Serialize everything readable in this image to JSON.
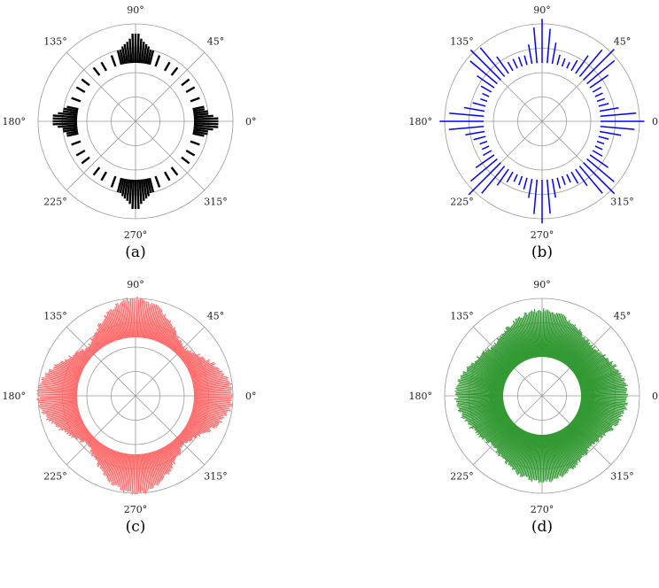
{
  "figure": {
    "captions": [
      "(a)",
      "(b)",
      "(c)",
      "(d)"
    ]
  },
  "chart_data": [
    {
      "type": "polar-bar",
      "caption": "(a)",
      "color": "#000000",
      "angle_ticks": [
        "0°",
        "45°",
        "90°",
        "135°",
        "180°",
        "225°",
        "270°",
        "315°"
      ],
      "inner_radius": 0.6,
      "outer_radius": 1.0,
      "bin_step_deg": 2,
      "bins": [
        {
          "angle": 0,
          "r": 0.85
        },
        {
          "angle": 2,
          "r": 0.85
        },
        {
          "angle": 4,
          "r": 0.8
        },
        {
          "angle": 6,
          "r": 0.75
        },
        {
          "angle": 8,
          "r": 0.75
        },
        {
          "angle": 10,
          "r": 0.72
        },
        {
          "angle": 12,
          "r": 0.72
        },
        {
          "angle": 20,
          "r": 0.7
        },
        {
          "angle": 30,
          "r": 0.7
        },
        {
          "angle": 38,
          "r": 0.7
        },
        {
          "angle": 52,
          "r": 0.7
        },
        {
          "angle": 60,
          "r": 0.7
        },
        {
          "angle": 70,
          "r": 0.72
        },
        {
          "angle": 76,
          "r": 0.75
        },
        {
          "angle": 78,
          "r": 0.75
        },
        {
          "angle": 80,
          "r": 0.78
        },
        {
          "angle": 82,
          "r": 0.8
        },
        {
          "angle": 84,
          "r": 0.82
        },
        {
          "angle": 86,
          "r": 0.85
        },
        {
          "angle": 88,
          "r": 0.9
        },
        {
          "angle": 90,
          "r": 0.9
        },
        {
          "angle": 92,
          "r": 0.9
        },
        {
          "angle": 94,
          "r": 0.85
        },
        {
          "angle": 96,
          "r": 0.82
        },
        {
          "angle": 98,
          "r": 0.8
        },
        {
          "angle": 100,
          "r": 0.78
        },
        {
          "angle": 102,
          "r": 0.75
        },
        {
          "angle": 104,
          "r": 0.75
        },
        {
          "angle": 110,
          "r": 0.72
        },
        {
          "angle": 120,
          "r": 0.7
        },
        {
          "angle": 128,
          "r": 0.7
        },
        {
          "angle": 142,
          "r": 0.7
        },
        {
          "angle": 150,
          "r": 0.7
        },
        {
          "angle": 160,
          "r": 0.7
        },
        {
          "angle": 168,
          "r": 0.72
        },
        {
          "angle": 170,
          "r": 0.75
        },
        {
          "angle": 172,
          "r": 0.75
        },
        {
          "angle": 174,
          "r": 0.8
        },
        {
          "angle": 176,
          "r": 0.85
        },
        {
          "angle": 178,
          "r": 0.85
        },
        {
          "angle": 180,
          "r": 0.85
        },
        {
          "angle": 182,
          "r": 0.85
        },
        {
          "angle": 184,
          "r": 0.8
        },
        {
          "angle": 186,
          "r": 0.75
        },
        {
          "angle": 188,
          "r": 0.75
        },
        {
          "angle": 190,
          "r": 0.72
        },
        {
          "angle": 192,
          "r": 0.72
        },
        {
          "angle": 200,
          "r": 0.7
        },
        {
          "angle": 210,
          "r": 0.7
        },
        {
          "angle": 218,
          "r": 0.7
        },
        {
          "angle": 232,
          "r": 0.7
        },
        {
          "angle": 240,
          "r": 0.7
        },
        {
          "angle": 250,
          "r": 0.72
        },
        {
          "angle": 256,
          "r": 0.75
        },
        {
          "angle": 258,
          "r": 0.75
        },
        {
          "angle": 260,
          "r": 0.78
        },
        {
          "angle": 262,
          "r": 0.8
        },
        {
          "angle": 264,
          "r": 0.82
        },
        {
          "angle": 266,
          "r": 0.85
        },
        {
          "angle": 268,
          "r": 0.9
        },
        {
          "angle": 270,
          "r": 0.9
        },
        {
          "angle": 272,
          "r": 0.9
        },
        {
          "angle": 274,
          "r": 0.85
        },
        {
          "angle": 276,
          "r": 0.82
        },
        {
          "angle": 278,
          "r": 0.8
        },
        {
          "angle": 280,
          "r": 0.78
        },
        {
          "angle": 282,
          "r": 0.75
        },
        {
          "angle": 284,
          "r": 0.75
        },
        {
          "angle": 290,
          "r": 0.72
        },
        {
          "angle": 300,
          "r": 0.7
        },
        {
          "angle": 308,
          "r": 0.7
        },
        {
          "angle": 322,
          "r": 0.7
        },
        {
          "angle": 330,
          "r": 0.7
        },
        {
          "angle": 340,
          "r": 0.7
        },
        {
          "angle": 348,
          "r": 0.72
        },
        {
          "angle": 350,
          "r": 0.75
        },
        {
          "angle": 352,
          "r": 0.75
        },
        {
          "angle": 354,
          "r": 0.8
        },
        {
          "angle": 356,
          "r": 0.85
        },
        {
          "angle": 358,
          "r": 0.85
        }
      ],
      "grid": true
    },
    {
      "type": "polar-bar",
      "caption": "(b)",
      "color": "#0000ff",
      "angle_ticks": [
        "0",
        "45°",
        "90°",
        "135°",
        "180°",
        "225°",
        "270°",
        "315°"
      ],
      "inner_radius": 0.6,
      "outer_radius": 1.0,
      "bin_step_deg": 5,
      "peaks_deg": [
        0,
        45,
        90,
        135,
        180,
        225,
        270,
        315
      ],
      "peak_r": 1.05,
      "base_r": 0.68,
      "grid": true
    },
    {
      "type": "polar-bar",
      "caption": "(c)",
      "color": "#ff6666",
      "angle_ticks": [
        "0°",
        "45°",
        "90°",
        "135°",
        "180°",
        "225°",
        "270°",
        "315°"
      ],
      "inner_radius": 0.6,
      "outer_radius": 1.0,
      "bin_step_deg": 1,
      "peaks_deg": [
        0,
        90,
        180,
        270
      ],
      "peak_r": 1.0,
      "base_r": 0.66,
      "grid": true
    },
    {
      "type": "polar-bar",
      "caption": "(d)",
      "color": "#339933",
      "angle_ticks": [
        "0",
        "45°",
        "90°",
        "135°",
        "180°",
        "225°",
        "270°",
        "315°"
      ],
      "inner_radius": 0.4,
      "outer_radius": 1.0,
      "bin_step_deg": 1,
      "peaks_deg": [
        0,
        90,
        180,
        270
      ],
      "peak_r": 0.88,
      "base_r": 0.7,
      "grid": true
    }
  ]
}
